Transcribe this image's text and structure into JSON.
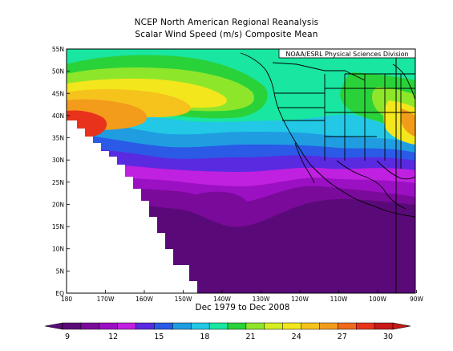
{
  "title_line1": "NCEP North American Regional Reanalysis",
  "title_line2": "Scalar Wind Speed (m/s) Composite Mean",
  "credit": "NOAA/ESRL Physical Sciences Division",
  "date_range": "Dec 1979 to Dec 2008",
  "lat_labels": [
    "EQ",
    "5N",
    "10N",
    "15N",
    "20N",
    "25N",
    "30N",
    "35N",
    "40N",
    "45N",
    "50N",
    "55N"
  ],
  "lon_labels": [
    "180",
    "170W",
    "160W",
    "150W",
    "140W",
    "130W",
    "120W",
    "110W",
    "100W",
    "90W"
  ],
  "colorbar": {
    "tick_labels": [
      "9",
      "12",
      "15",
      "18",
      "21",
      "24",
      "27",
      "30"
    ],
    "colors": [
      "#5a0a78",
      "#7a0a9a",
      "#9b10c2",
      "#c020e0",
      "#5a2ae0",
      "#2a5ae6",
      "#1f9de0",
      "#22c8e6",
      "#19e6a0",
      "#2ad23a",
      "#8ee62a",
      "#d6ee22",
      "#f3e61c",
      "#f6c21c",
      "#f39c1c",
      "#f06a1c",
      "#e8321c",
      "#c81818"
    ]
  }
}
